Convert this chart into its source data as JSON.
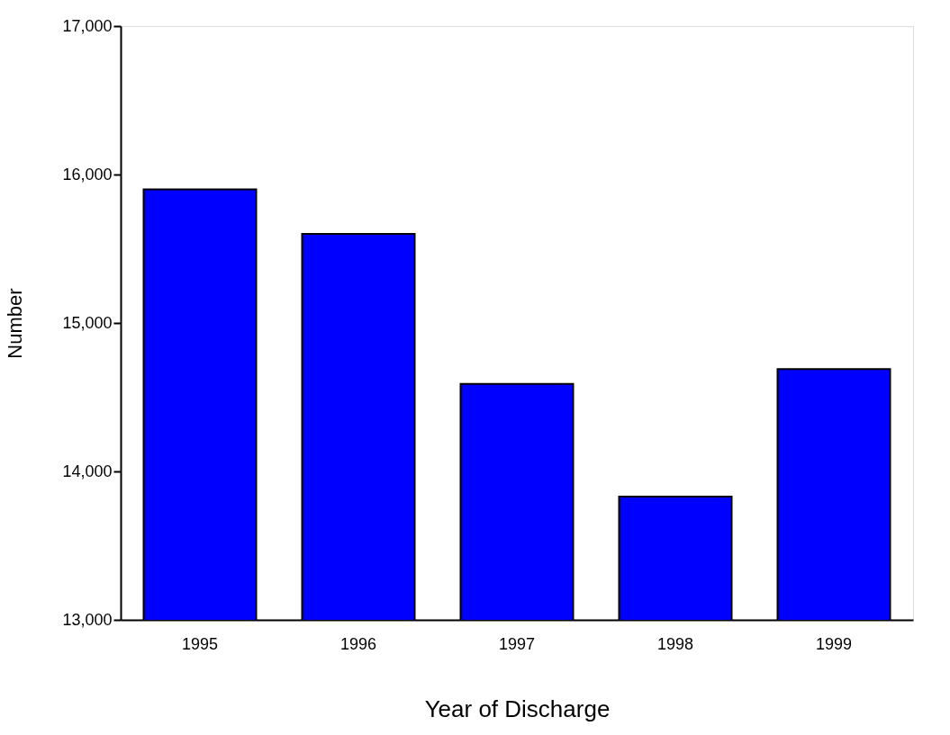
{
  "chart_data": {
    "type": "bar",
    "xlabel": "Year of Discharge",
    "ylabel": "Number",
    "categories": [
      "1995",
      "1996",
      "1997",
      "1998",
      "1999"
    ],
    "values": [
      15900,
      15600,
      14590,
      13830,
      14690
    ],
    "color": "#0000ff",
    "ylim": [
      13000,
      17000
    ],
    "yticks": [
      {
        "value": 13000,
        "label": "13,000"
      },
      {
        "value": 14000,
        "label": "14,000"
      },
      {
        "value": 15000,
        "label": "15,000"
      },
      {
        "value": 16000,
        "label": "16,000"
      },
      {
        "value": 17000,
        "label": "17,000"
      }
    ],
    "grid": false
  }
}
